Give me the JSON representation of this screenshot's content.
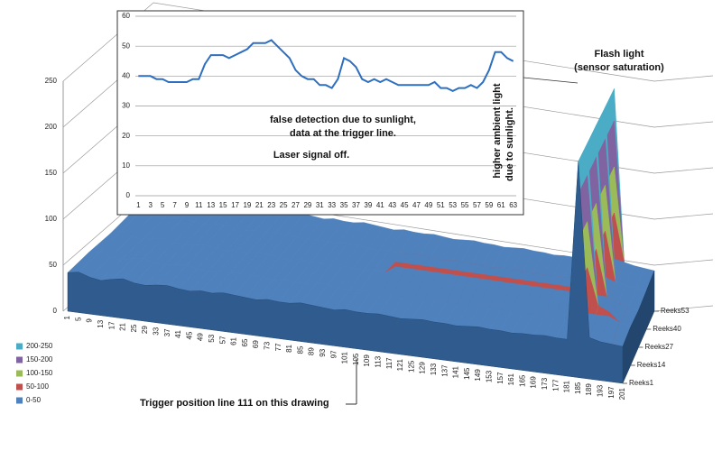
{
  "chart_data": [
    {
      "type": "line",
      "x": [
        1,
        2,
        3,
        4,
        5,
        6,
        7,
        8,
        9,
        10,
        11,
        12,
        13,
        14,
        15,
        16,
        17,
        18,
        19,
        20,
        21,
        22,
        23,
        24,
        25,
        26,
        27,
        28,
        29,
        30,
        31,
        32,
        33,
        34,
        35,
        36,
        37,
        38,
        39,
        40,
        41,
        42,
        43,
        44,
        45,
        46,
        47,
        48,
        49,
        50,
        51,
        52,
        53,
        54,
        55,
        56,
        57,
        58,
        59,
        60,
        61,
        62,
        63
      ],
      "values": [
        40,
        40,
        40,
        39,
        39,
        38,
        38,
        38,
        38,
        39,
        39,
        44,
        47,
        47,
        47,
        46,
        47,
        48,
        49,
        51,
        51,
        51,
        52,
        50,
        48,
        46,
        42,
        40,
        39,
        39,
        37,
        37,
        36,
        39,
        46,
        45,
        43,
        39,
        38,
        39,
        38,
        39,
        38,
        37,
        37,
        37,
        37,
        37,
        37,
        38,
        36,
        36,
        35,
        36,
        36,
        37,
        36,
        38,
        42,
        48,
        48,
        46,
        45
      ],
      "color": "#2e6fbf",
      "xlim": [
        0.5,
        63.5
      ],
      "xticks": [
        1,
        3,
        5,
        7,
        9,
        11,
        13,
        15,
        17,
        19,
        21,
        23,
        25,
        27,
        29,
        31,
        33,
        35,
        37,
        39,
        41,
        43,
        45,
        47,
        49,
        51,
        53,
        55,
        57,
        59,
        61,
        63
      ],
      "ylim": [
        0,
        60
      ],
      "yticks": [
        0,
        10,
        20,
        30,
        40,
        50,
        60
      ],
      "grid": true,
      "annotations": [
        "false detection due to sunlight,",
        "data at the trigger line.",
        "Laser signal off.",
        "higher ambient light",
        "due to sunlight."
      ]
    },
    {
      "type": "surface",
      "categories": [
        1,
        5,
        9,
        13,
        17,
        21,
        25,
        29,
        33,
        37,
        41,
        45,
        49,
        53,
        57,
        61,
        65,
        69,
        73,
        77,
        81,
        85,
        89,
        93,
        97,
        101,
        105,
        109,
        113,
        117,
        121,
        125,
        129,
        133,
        137,
        141,
        145,
        149,
        153,
        157,
        161,
        165,
        169,
        173,
        177,
        181,
        185,
        189,
        193,
        197,
        201
      ],
      "series": [
        {
          "name": "Reeks1",
          "values": [
            42,
            44,
            40,
            38,
            41,
            43,
            40,
            39,
            41,
            42,
            40,
            39,
            41,
            40,
            42,
            41,
            40,
            39,
            41,
            40,
            40,
            42,
            41,
            40,
            39,
            41,
            40,
            40,
            41,
            40,
            39,
            40,
            41,
            40,
            40,
            39,
            40,
            41,
            40,
            40,
            39,
            40,
            40,
            41,
            40,
            40,
            235,
            45,
            42,
            41,
            40
          ]
        },
        {
          "name": "Reeks14",
          "values": [
            43,
            45,
            41,
            40,
            42,
            44,
            41,
            40,
            42,
            43,
            41,
            40,
            42,
            41,
            43,
            42,
            41,
            40,
            42,
            41,
            41,
            43,
            42,
            41,
            40,
            42,
            41,
            41,
            42,
            41,
            40,
            41,
            42,
            41,
            41,
            40,
            41,
            42,
            41,
            41,
            40,
            41,
            41,
            42,
            41,
            41,
            235,
            60,
            55,
            45,
            42
          ]
        },
        {
          "name": "Reeks27",
          "values": [
            42,
            46,
            42,
            40,
            43,
            45,
            42,
            41,
            43,
            44,
            42,
            41,
            43,
            42,
            44,
            43,
            42,
            41,
            43,
            42,
            42,
            44,
            43,
            42,
            41,
            43,
            42,
            55,
            55,
            55,
            55,
            55,
            55,
            55,
            55,
            55,
            55,
            55,
            55,
            55,
            55,
            55,
            55,
            55,
            55,
            55,
            235,
            50,
            45,
            42,
            40
          ]
        },
        {
          "name": "Reeks40",
          "values": [
            44,
            48,
            43,
            41,
            44,
            46,
            43,
            42,
            44,
            45,
            43,
            42,
            44,
            43,
            45,
            44,
            43,
            42,
            44,
            43,
            43,
            45,
            44,
            43,
            42,
            44,
            43,
            43,
            44,
            43,
            42,
            43,
            44,
            43,
            43,
            42,
            43,
            44,
            43,
            43,
            42,
            43,
            43,
            44,
            43,
            43,
            235,
            46,
            44,
            43,
            42
          ]
        },
        {
          "name": "Reeks53",
          "values": [
            46,
            52,
            45,
            43,
            46,
            50,
            45,
            44,
            46,
            47,
            45,
            44,
            46,
            45,
            47,
            46,
            45,
            44,
            46,
            45,
            45,
            47,
            46,
            45,
            44,
            46,
            45,
            45,
            46,
            45,
            44,
            45,
            46,
            45,
            45,
            44,
            45,
            46,
            45,
            45,
            44,
            45,
            45,
            46,
            45,
            45,
            235,
            48,
            46,
            45,
            44
          ]
        }
      ],
      "ylim": [
        0,
        250
      ],
      "yticks": [
        0,
        50,
        100,
        150,
        200,
        250
      ],
      "grid": true,
      "bands": [
        {
          "label": "200-250",
          "min": 200,
          "max": 250,
          "color": "#4bacc6"
        },
        {
          "label": "150-200",
          "min": 150,
          "max": 200,
          "color": "#8064a2"
        },
        {
          "label": "100-150",
          "min": 100,
          "max": 150,
          "color": "#9bbb59"
        },
        {
          "label": "50-100",
          "min": 50,
          "max": 100,
          "color": "#c0504d"
        },
        {
          "label": "0-50",
          "min": 0,
          "max": 50,
          "color": "#4f81bd"
        }
      ],
      "annotations": [
        "Flash light",
        "(sensor saturation)",
        "Trigger position line 111 on this drawing"
      ]
    }
  ]
}
